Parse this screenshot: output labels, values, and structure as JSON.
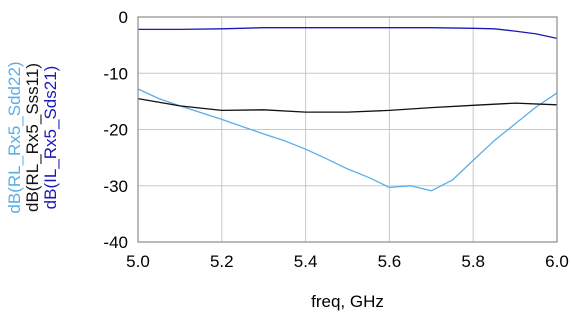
{
  "chart_data": {
    "type": "line",
    "xlabel": "freq, GHz",
    "xlim": [
      5.0,
      6.0
    ],
    "ylim": [
      -40,
      0
    ],
    "x_ticks": [
      "5.0",
      "5.2",
      "5.4",
      "5.6",
      "5.8",
      "6.0"
    ],
    "y_ticks": [
      "0",
      "-10",
      "-20",
      "-30",
      "-40"
    ],
    "grid": true,
    "series": [
      {
        "name": "dB(RL_Rx5_Sdd22)",
        "color": "#5aaee8",
        "x": [
          5.0,
          5.05,
          5.1,
          5.15,
          5.2,
          5.25,
          5.3,
          5.35,
          5.4,
          5.45,
          5.5,
          5.55,
          5.6,
          5.65,
          5.7,
          5.75,
          5.8,
          5.85,
          5.9,
          5.95,
          6.0
        ],
        "y": [
          -12.8,
          -14.5,
          -15.8,
          -17.0,
          -18.2,
          -19.5,
          -20.8,
          -22.0,
          -23.5,
          -25.2,
          -27.0,
          -28.5,
          -30.3,
          -30.0,
          -30.9,
          -29.0,
          -25.5,
          -22.0,
          -19.0,
          -16.0,
          -13.5
        ]
      },
      {
        "name": "dB(RL_Rx5_Sss11)",
        "color": "#111111",
        "x": [
          5.0,
          5.1,
          5.2,
          5.3,
          5.4,
          5.5,
          5.6,
          5.7,
          5.8,
          5.9,
          6.0
        ],
        "y": [
          -14.5,
          -15.8,
          -16.6,
          -16.5,
          -16.9,
          -16.9,
          -16.6,
          -16.1,
          -15.7,
          -15.3,
          -15.6
        ]
      },
      {
        "name": "dB(IL_Rx5_Sds21)",
        "color": "#1a1ab8",
        "x": [
          5.0,
          5.1,
          5.2,
          5.3,
          5.4,
          5.5,
          5.6,
          5.7,
          5.8,
          5.85,
          5.9,
          5.95,
          6.0
        ],
        "y": [
          -2.2,
          -2.2,
          -2.1,
          -1.9,
          -1.9,
          -1.9,
          -1.9,
          -1.9,
          -2.0,
          -2.1,
          -2.5,
          -3.0,
          -3.8
        ]
      }
    ]
  }
}
